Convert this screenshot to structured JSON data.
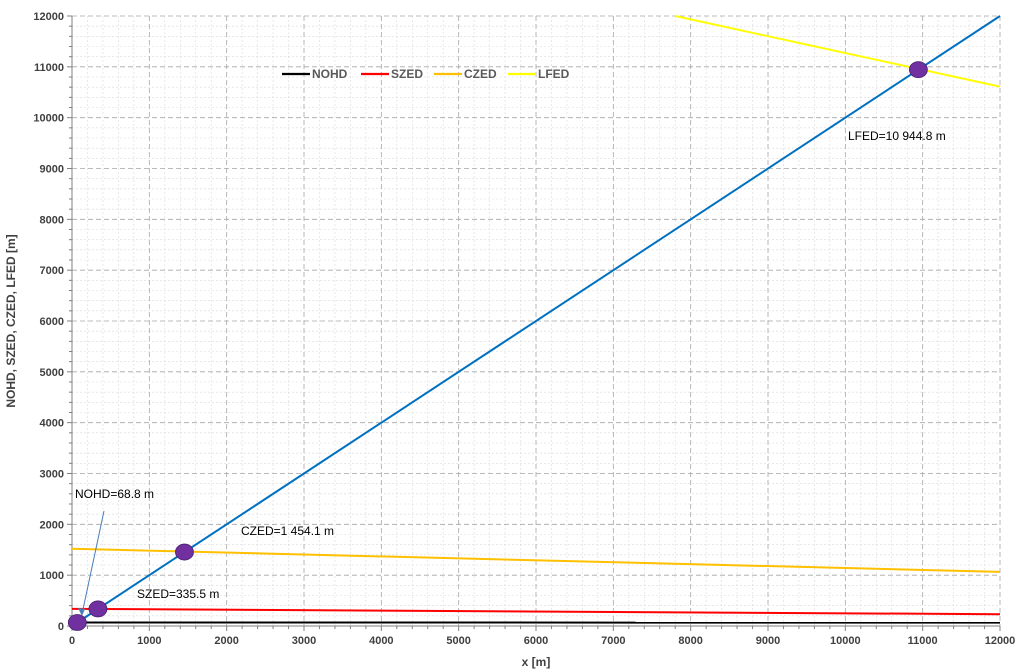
{
  "chart_data": {
    "type": "line",
    "xlabel": "x [m]",
    "ylabel": "NOHD, SZED, CZED, LFED [m]",
    "xlim": [
      0,
      12000
    ],
    "ylim": [
      0,
      12000
    ],
    "x_ticks": [
      0,
      1000,
      2000,
      3000,
      4000,
      5000,
      6000,
      7000,
      8000,
      9000,
      10000,
      11000,
      12000
    ],
    "y_ticks": [
      0,
      1000,
      2000,
      3000,
      4000,
      5000,
      6000,
      7000,
      8000,
      9000,
      10000,
      11000,
      12000
    ],
    "grid": true,
    "legend_position": "top-center",
    "series": [
      {
        "name": "NOHD",
        "color": "#000000",
        "x": [
          0,
          12000
        ],
        "y": [
          70,
          66
        ],
        "in_legend": true
      },
      {
        "name": "SZED",
        "color": "#ff0000",
        "x": [
          0,
          12000
        ],
        "y": [
          338,
          232
        ],
        "in_legend": true
      },
      {
        "name": "CZED",
        "color": "#ffc000",
        "x": [
          0,
          12000
        ],
        "y": [
          1520,
          1065
        ],
        "in_legend": true
      },
      {
        "name": "LFED",
        "color": "#ffff00",
        "x": [
          7800,
          12000
        ],
        "y": [
          12000,
          10610
        ],
        "in_legend": true
      },
      {
        "name": "",
        "color": "#0070c0",
        "x": [
          0,
          12000
        ],
        "y": [
          0,
          12000
        ],
        "in_legend": false
      }
    ],
    "intersections": [
      {
        "x": 68.8,
        "y": 68.8
      },
      {
        "x": 335.5,
        "y": 335.5
      },
      {
        "x": 1454.1,
        "y": 1454.1
      },
      {
        "x": 10944.8,
        "y": 10944.8
      }
    ],
    "marker_color": "#7030a0",
    "annotations": [
      {
        "text": "NOHD=68.8 m",
        "x": 68.8,
        "y": 68.8
      },
      {
        "text": "SZED=335.5 m",
        "x": 335.5,
        "y": 335.5
      },
      {
        "text": "CZED=1 454.1 m",
        "x": 1454.1,
        "y": 1454.1
      },
      {
        "text": "LFED=10 944.8 m",
        "x": 10944.8,
        "y": 10944.8
      }
    ]
  }
}
